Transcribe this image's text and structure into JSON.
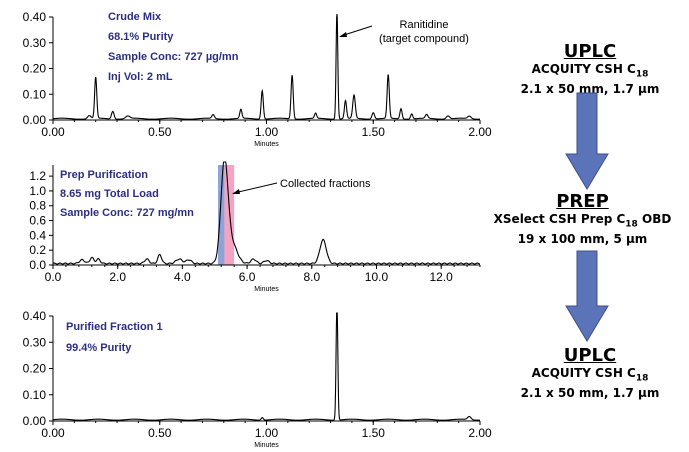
{
  "colors": {
    "info_text": "#2c2f7f",
    "arrow": "#5b73b8",
    "trace": "#000000",
    "fraction_blue": "#8fa3d6",
    "fraction_pink": "#f4a3c3"
  },
  "panels": [
    {
      "info": [
        "Crude Mix",
        "68.1% Purity",
        "Sample Conc: 727 µg/mn",
        "Inj Vol: 2 mL"
      ],
      "annotation": [
        "Ranitidine",
        "(target compound)"
      ],
      "xlabel": "Minutes",
      "xticks": [
        "0.00",
        "0.50",
        "1.00",
        "1.50",
        "2.00"
      ],
      "yticks": [
        "0.00",
        "0.10",
        "0.20",
        "0.30",
        "0.40"
      ]
    },
    {
      "info": [
        "Prep Purification",
        "8.65 mg Total Load",
        "Sample Conc: 727 mg/mn"
      ],
      "annotation": [
        "Collected fractions"
      ],
      "xlabel": "Minutes",
      "xticks": [
        "0.0",
        "2.0",
        "4.0",
        "6.0",
        "8.0",
        "10.0",
        "12.0"
      ],
      "yticks": [
        "0.0",
        "0.2",
        "0.4",
        "0.6",
        "0.8",
        "1.0",
        "1.2"
      ]
    },
    {
      "info": [
        "Purified Fraction 1",
        "99.4% Purity"
      ],
      "xlabel": "Minutes",
      "xticks": [
        "0.00",
        "0.50",
        "1.00",
        "1.50",
        "2.00"
      ],
      "yticks": [
        "0.00",
        "0.10",
        "0.20",
        "0.30",
        "0.40"
      ]
    }
  ],
  "side": [
    {
      "title": "UPLC",
      "line1": "ACQUITY CSH C18",
      "line2": "2.1 x 50 mm, 1.7 µm"
    },
    {
      "title": "PREP",
      "line1": "XSelect CSH Prep C18 OBD",
      "line2": "19 x 100 mm, 5 µm"
    },
    {
      "title": "UPLC",
      "line1": "ACQUITY CSH C18",
      "line2": "2.1 x 50 mm, 1.7 µm"
    }
  ],
  "chart_data": [
    {
      "type": "line",
      "xlabel": "Minutes",
      "xlim": [
        0,
        2.0
      ],
      "ylim": [
        0,
        0.4
      ],
      "baseline": 0.005,
      "peaks": [
        {
          "x": 0.17,
          "y": 0.012,
          "w": 0.008
        },
        {
          "x": 0.2,
          "y": 0.16,
          "w": 0.005
        },
        {
          "x": 0.28,
          "y": 0.03,
          "w": 0.006
        },
        {
          "x": 0.35,
          "y": 0.01,
          "w": 0.01
        },
        {
          "x": 0.75,
          "y": 0.015,
          "w": 0.006
        },
        {
          "x": 0.88,
          "y": 0.035,
          "w": 0.005
        },
        {
          "x": 0.98,
          "y": 0.11,
          "w": 0.005
        },
        {
          "x": 1.12,
          "y": 0.17,
          "w": 0.005
        },
        {
          "x": 1.23,
          "y": 0.02,
          "w": 0.005
        },
        {
          "x": 1.33,
          "y": 0.42,
          "w": 0.004
        },
        {
          "x": 1.37,
          "y": 0.07,
          "w": 0.005
        },
        {
          "x": 1.41,
          "y": 0.09,
          "w": 0.006
        },
        {
          "x": 1.5,
          "y": 0.025,
          "w": 0.006
        },
        {
          "x": 1.57,
          "y": 0.17,
          "w": 0.005
        },
        {
          "x": 1.63,
          "y": 0.04,
          "w": 0.005
        },
        {
          "x": 1.68,
          "y": 0.02,
          "w": 0.005
        },
        {
          "x": 1.75,
          "y": 0.015,
          "w": 0.006
        },
        {
          "x": 1.85,
          "y": 0.012,
          "w": 0.008
        },
        {
          "x": 1.95,
          "y": 0.01,
          "w": 0.008
        }
      ]
    },
    {
      "type": "line",
      "xlabel": "Minutes",
      "xlim": [
        0,
        13.2
      ],
      "ylim": [
        0,
        1.35
      ],
      "baseline": 0.02,
      "fraction_range": [
        5.1,
        5.6
      ],
      "peaks": [
        {
          "x": 0.9,
          "y": 0.05,
          "w": 0.08
        },
        {
          "x": 1.2,
          "y": 0.08,
          "w": 0.06
        },
        {
          "x": 1.4,
          "y": 0.06,
          "w": 0.06
        },
        {
          "x": 2.9,
          "y": 0.06,
          "w": 0.07
        },
        {
          "x": 3.3,
          "y": 0.12,
          "w": 0.06
        },
        {
          "x": 3.9,
          "y": 0.06,
          "w": 0.1
        },
        {
          "x": 4.2,
          "y": 0.05,
          "w": 0.08
        },
        {
          "x": 5.3,
          "y": 1.37,
          "w": 0.11
        },
        {
          "x": 5.55,
          "y": 0.25,
          "w": 0.15
        },
        {
          "x": 6.2,
          "y": 0.06,
          "w": 0.08
        },
        {
          "x": 6.6,
          "y": 0.04,
          "w": 0.08
        },
        {
          "x": 8.35,
          "y": 0.32,
          "w": 0.1
        }
      ]
    },
    {
      "type": "line",
      "xlabel": "Minutes",
      "xlim": [
        0,
        2.0
      ],
      "ylim": [
        0,
        0.4
      ],
      "baseline": 0.005,
      "peaks": [
        {
          "x": 0.98,
          "y": 0.01,
          "w": 0.005
        },
        {
          "x": 1.33,
          "y": 0.45,
          "w": 0.004
        },
        {
          "x": 1.95,
          "y": 0.012,
          "w": 0.008
        }
      ]
    }
  ]
}
